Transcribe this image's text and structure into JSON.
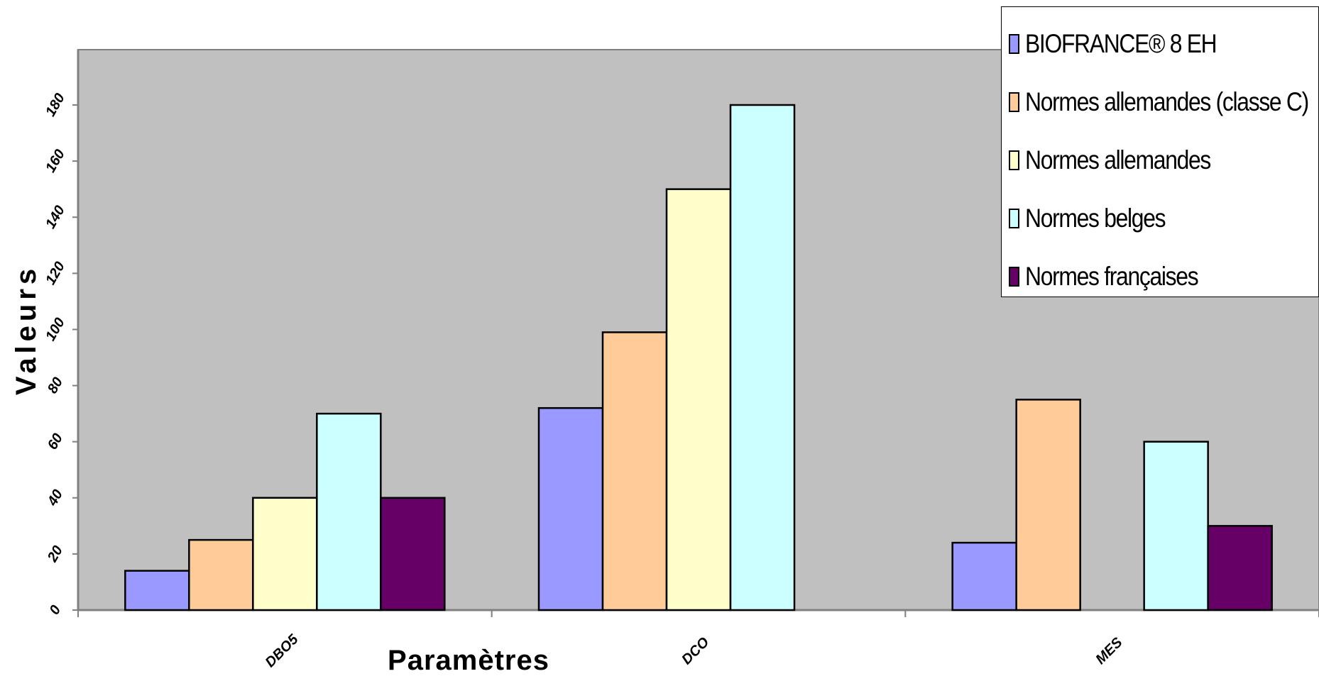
{
  "chart_data": {
    "type": "bar",
    "ylabel": "Valeurs",
    "xlabel": "Paramètres",
    "x_tick_labels": [
      "DBO5",
      "DCO",
      "MES"
    ],
    "y_tick_labels": [
      "0",
      "20",
      "40",
      "60",
      "80",
      "100",
      "120",
      "140",
      "160",
      "180"
    ],
    "ylim": [
      0,
      180
    ],
    "categories": [
      "DBO5",
      "DCO",
      "MES"
    ],
    "series": [
      {
        "name": "BIOFRANCE® 8 EH",
        "color": "#9999ff",
        "values": [
          14,
          72,
          24
        ]
      },
      {
        "name": "Normes allemandes (classe C)",
        "color": "#ffcc99",
        "values": [
          25,
          99,
          75
        ]
      },
      {
        "name": "Normes allemandes",
        "color": "#ffffcc",
        "values": [
          40,
          150,
          null
        ]
      },
      {
        "name": "Normes belges",
        "color": "#ccffff",
        "values": [
          70,
          180,
          60
        ]
      },
      {
        "name": "Normes françaises",
        "color": "#660066",
        "values": [
          40,
          null,
          30
        ]
      }
    ],
    "grid": false,
    "plot_background": "#c0c0c0",
    "legend_position": "top-right"
  }
}
